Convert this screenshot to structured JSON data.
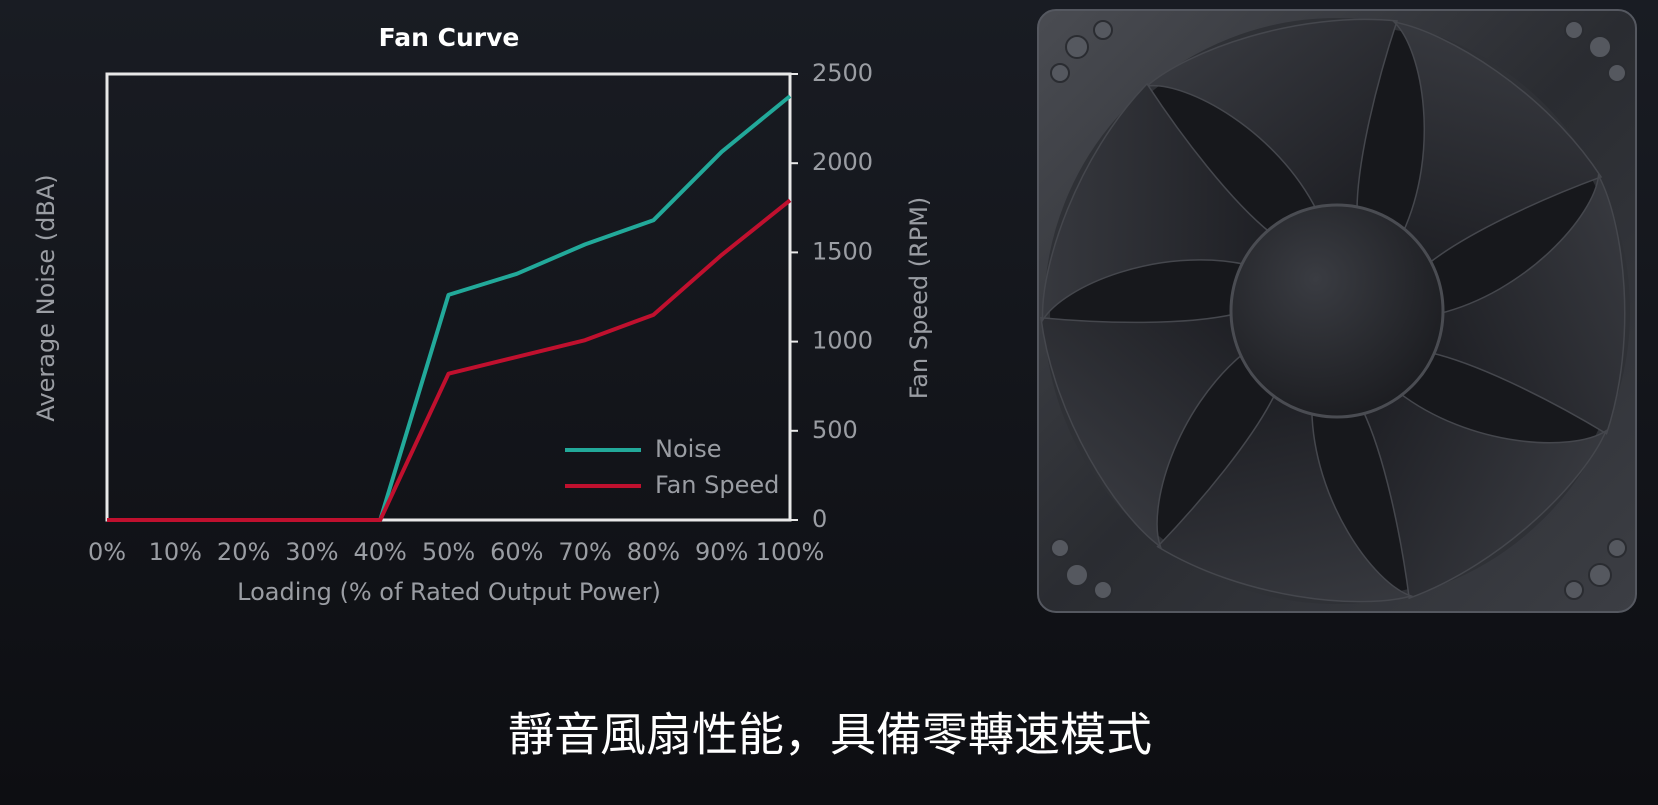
{
  "chart_data": {
    "type": "line",
    "title": "Fan Curve",
    "x_label": "Loading (% of Rated Output Power)",
    "y_label": "Average Noise (dBA)",
    "y2_label": "Fan Speed (RPM)",
    "categories": [
      "0%",
      "10%",
      "20%",
      "30%",
      "40%",
      "50%",
      "60%",
      "70%",
      "80%",
      "90%",
      "100%"
    ],
    "series": [
      {
        "name": "Noise",
        "color": "#22a99a",
        "axis": "y2",
        "values": [
          0,
          0,
          0,
          0,
          0,
          1262,
          1380,
          1545,
          1680,
          2064,
          2376
        ]
      },
      {
        "name": "Fan Speed",
        "color": "#c0102e",
        "axis": "y2",
        "values": [
          0,
          0,
          0,
          0,
          0,
          820,
          914,
          1008,
          1150,
          1486,
          1792
        ]
      }
    ],
    "y2lim": [
      0,
      2500
    ],
    "y2ticks": [
      0,
      500,
      1000,
      1500,
      2000,
      2500
    ],
    "legend": "lower right"
  },
  "caption": "靜音風扇性能，具備零轉速模式"
}
